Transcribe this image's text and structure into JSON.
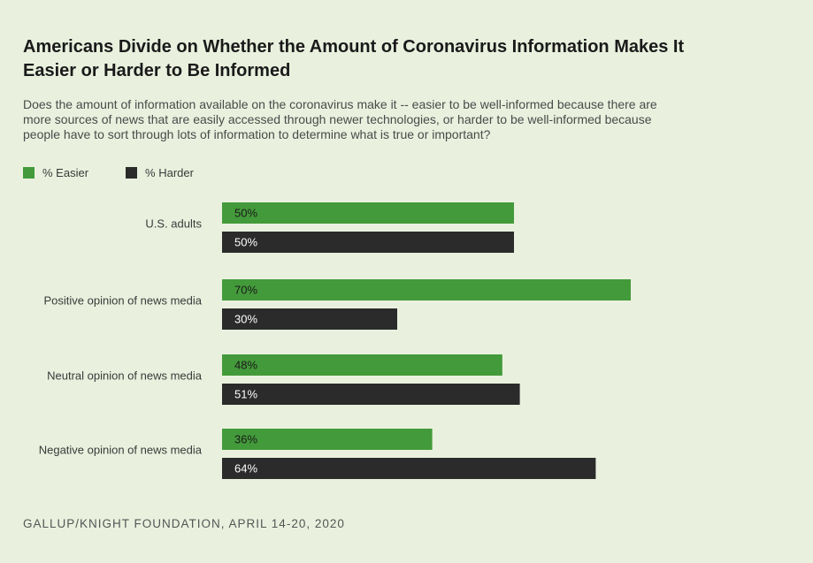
{
  "title": "Americans Divide on Whether the Amount of Coronavirus Information Makes It Easier or Harder to Be Informed",
  "subtitle": "Does the amount of information available on the coronavirus make it -- easier to be well-informed because there are more sources of news that are easily accessed through newer technologies, or harder to be well-informed because people have to sort through lots of information to determine what is true or important?",
  "source": "GALLUP/KNIGHT FOUNDATION, APRIL 14-20, 2020",
  "colors": {
    "easier": "#439a3a",
    "harder": "#2b2b2b",
    "background": "#e9f1de"
  },
  "chart_data": {
    "type": "bar",
    "orientation": "horizontal",
    "title": "Americans Divide on Whether the Amount of Coronavirus Information Makes It Easier or Harder to Be Informed",
    "xlabel": "",
    "ylabel": "",
    "xlim": [
      0,
      100
    ],
    "grid": false,
    "legend_position": "top-left",
    "categories": [
      "U.S. adults",
      "Positive opinion of news media",
      "Neutral opinion of news media",
      "Negative opinion of news media"
    ],
    "series": [
      {
        "name": "% Easier",
        "color": "#439a3a",
        "values": [
          50,
          70,
          48,
          36
        ],
        "labels": [
          "50%",
          "70%",
          "48%",
          "36%"
        ]
      },
      {
        "name": "% Harder",
        "color": "#2b2b2b",
        "values": [
          50,
          30,
          51,
          64
        ],
        "labels": [
          "50%",
          "30%",
          "51%",
          "64%"
        ]
      }
    ]
  }
}
